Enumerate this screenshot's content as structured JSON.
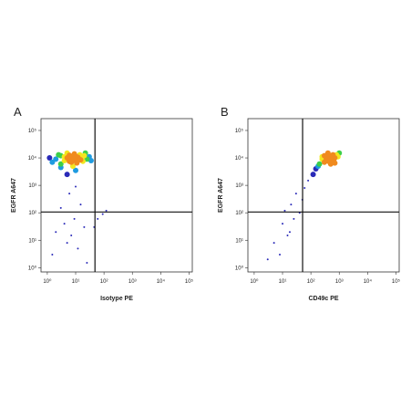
{
  "chart_data": [
    {
      "type": "scatter",
      "label": "A",
      "xlabel": "Isotype PE",
      "ylabel": "EGFR A647",
      "xlog": true,
      "ylog": true,
      "xlim": [
        0.6,
        130000
      ],
      "ylim": [
        0.7,
        270000
      ],
      "xticks": [
        {
          "value": 1,
          "label": "10⁰"
        },
        {
          "value": 10,
          "label": "10¹"
        },
        {
          "value": 100,
          "label": "10²"
        },
        {
          "value": 1000,
          "label": "10³"
        },
        {
          "value": 10000,
          "label": "10⁴"
        },
        {
          "value": 100000,
          "label": "10⁵"
        }
      ],
      "yticks": [
        {
          "value": 1,
          "label": "10⁰"
        },
        {
          "value": 10,
          "label": "10¹"
        },
        {
          "value": 100,
          "label": "10²"
        },
        {
          "value": 1000,
          "label": "10³"
        },
        {
          "value": 10000,
          "label": "10⁴"
        },
        {
          "value": 100000,
          "label": "10⁵"
        }
      ],
      "quadrant": {
        "x": 48,
        "y": 107
      },
      "colormap": [
        "#2a2ab8",
        "#1e9be0",
        "#3ccf4a",
        "#f2e61e",
        "#f08a1e"
      ],
      "x": [
        2,
        3,
        4,
        5,
        6,
        8,
        10,
        12,
        15,
        20,
        25,
        1.5,
        3,
        5,
        7,
        9,
        11,
        14,
        18,
        30,
        6,
        8,
        10,
        4,
        12,
        7,
        9,
        6,
        16,
        2.5,
        1.2,
        22,
        35,
        8,
        10,
        5,
        3,
        2,
        5,
        9,
        15,
        1.5,
        4,
        20,
        12,
        3,
        25,
        7,
        60,
        90,
        120,
        45,
        10,
        6
      ],
      "values": [
        9000,
        12000,
        8000,
        10000,
        9500,
        11000,
        9000,
        10500,
        8500,
        12000,
        9000,
        7000,
        6000,
        15000,
        7000,
        14000,
        6500,
        13000,
        7500,
        11000,
        12500,
        8000,
        11500,
        11000,
        8000,
        10000,
        9500,
        7500,
        10000,
        13000,
        10000,
        15000,
        8000,
        5000,
        3500,
        2500,
        4500,
        20,
        8,
        60,
        200,
        3,
        40,
        30,
        5,
        150,
        1.5,
        15,
        60,
        90,
        120,
        30,
        900,
        500
      ]
    },
    {
      "type": "scatter",
      "label": "B",
      "xlabel": "CD49c PE",
      "ylabel": "EGFR A647",
      "xlog": true,
      "ylog": true,
      "xlim": [
        0.6,
        130000
      ],
      "ylim": [
        0.7,
        270000
      ],
      "xticks": [
        {
          "value": 1,
          "label": "10⁰"
        },
        {
          "value": 10,
          "label": "10¹"
        },
        {
          "value": 100,
          "label": "10²"
        },
        {
          "value": 1000,
          "label": "10³"
        },
        {
          "value": 10000,
          "label": "10⁴"
        },
        {
          "value": 100000,
          "label": "10⁵"
        }
      ],
      "yticks": [
        {
          "value": 1,
          "label": "10⁰"
        },
        {
          "value": 10,
          "label": "10¹"
        },
        {
          "value": 100,
          "label": "10²"
        },
        {
          "value": 1000,
          "label": "10³"
        },
        {
          "value": 10000,
          "label": "10⁴"
        },
        {
          "value": 100000,
          "label": "10⁵"
        }
      ],
      "quadrant": {
        "x": 51,
        "y": 107
      },
      "colormap": [
        "#2a2ab8",
        "#1e9be0",
        "#3ccf4a",
        "#f2e61e",
        "#f08a1e"
      ],
      "x": [
        200,
        250,
        300,
        350,
        400,
        450,
        500,
        550,
        600,
        700,
        800,
        300,
        400,
        500,
        350,
        450,
        550,
        650,
        380,
        420,
        480,
        520,
        600,
        900,
        150,
        120,
        180,
        1000,
        250,
        700,
        440,
        460,
        410,
        390,
        80,
        60,
        30,
        20,
        10,
        5,
        15,
        40,
        8,
        25,
        12,
        50,
        3,
        18
      ],
      "values": [
        6000,
        9000,
        7000,
        10000,
        8000,
        12000,
        9000,
        11000,
        7500,
        10000,
        13000,
        12000,
        15000,
        6000,
        8500,
        9500,
        8500,
        9000,
        10500,
        7500,
        10000,
        11500,
        13000,
        11000,
        4000,
        2500,
        5000,
        15000,
        11000,
        6500,
        9000,
        8800,
        9300,
        8200,
        1500,
        800,
        500,
        200,
        40,
        8,
        15,
        100,
        3,
        60,
        120,
        300,
        2,
        20
      ]
    }
  ]
}
